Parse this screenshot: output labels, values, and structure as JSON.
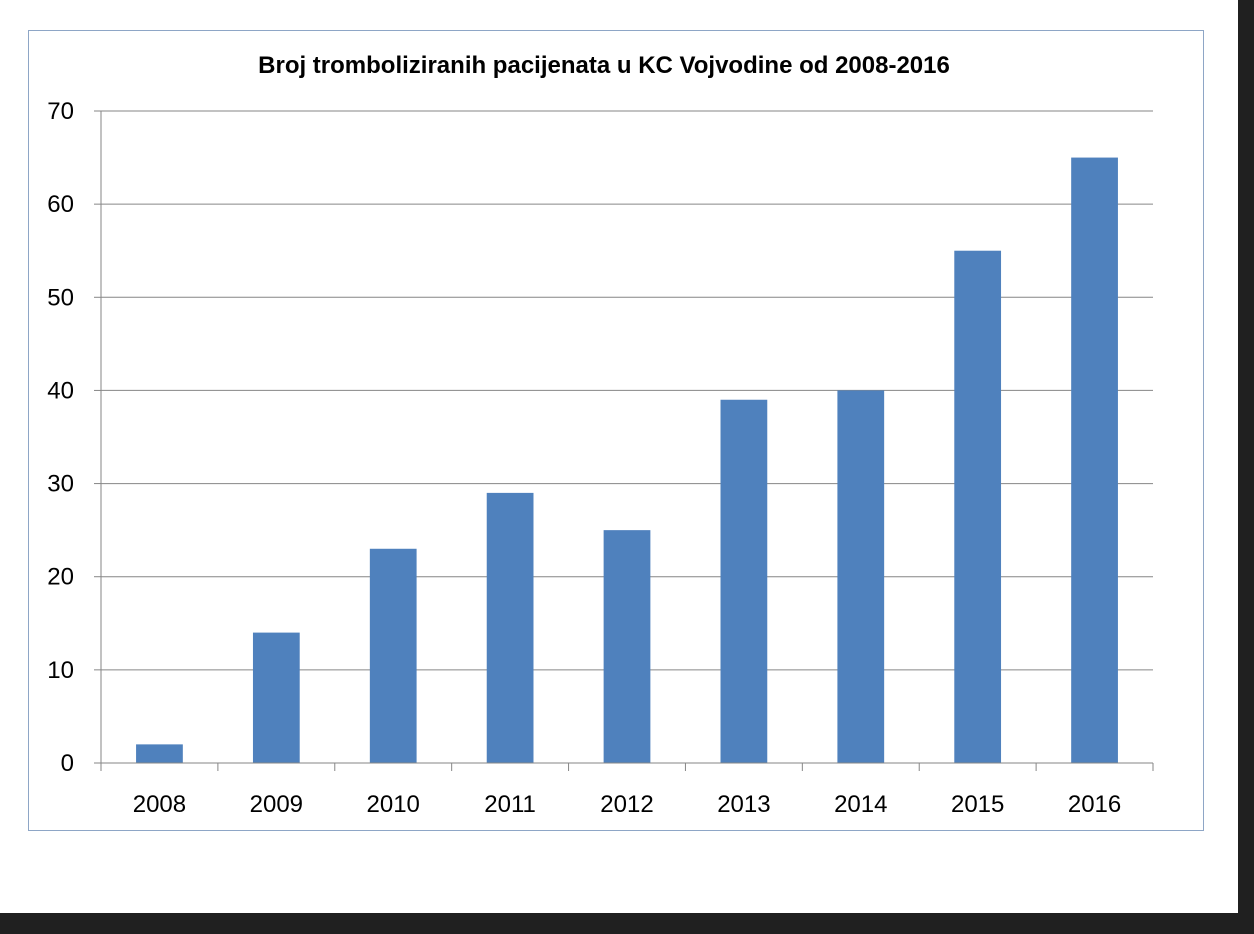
{
  "chart_data": {
    "type": "bar",
    "title": "Broj tromboliziranih pacijenata u KC Vojvodine od 2008-2016",
    "xlabel": "",
    "ylabel": "",
    "categories": [
      "2008",
      "2009",
      "2010",
      "2011",
      "2012",
      "2013",
      "2014",
      "2015",
      "2016"
    ],
    "values": [
      2,
      14,
      23,
      29,
      25,
      39,
      40,
      55,
      65
    ],
    "ylim": [
      0,
      70
    ],
    "yticks": [
      "0",
      "10",
      "20",
      "30",
      "40",
      "50",
      "60",
      "70"
    ],
    "grid": true,
    "legend": "none",
    "bar_color": "#4f81bd",
    "grid_color": "#868686"
  }
}
